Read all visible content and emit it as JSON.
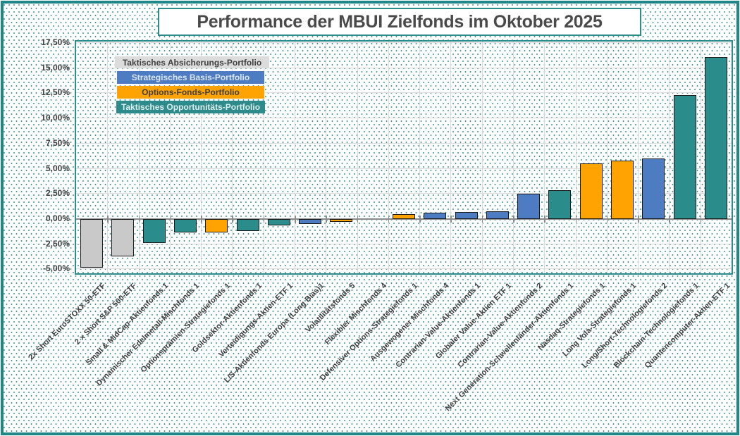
{
  "title": "Performance der MBUI Zielfonds im Oktober 2025",
  "legend": {
    "position": "top-left",
    "items": [
      {
        "label": "Taktisches Absicherungs-Portfolio",
        "key": "absicherung",
        "color": "#DCDCDC",
        "text_color": "#3F3F3F"
      },
      {
        "label": "Strategisches Basis-Portfolio",
        "key": "basis",
        "color": "#4E7CC3",
        "text_color": "#DCE6F2"
      },
      {
        "label": "Options-Fonds-Portfolio",
        "key": "options",
        "color": "#FFA303",
        "text_color": "#3F3F3F"
      },
      {
        "label": "Taktisches Opportunitäts-Portfolio",
        "key": "opportunitaet",
        "color": "#2E8B8B",
        "text_color": "#DEEDED"
      }
    ]
  },
  "palette": {
    "absicherung": "#C9C9C9",
    "basis": "#4E7CC3",
    "options": "#FFA303",
    "opportunitaet": "#2B8C8C"
  },
  "chart_data": {
    "type": "bar",
    "title": "Performance der MBUI Zielfonds im Oktober 2025",
    "unit": "percent",
    "grid": true,
    "legend_position": "top-left",
    "ylim": [
      -6,
      17.6
    ],
    "ytick_step": 2.5,
    "yticks": [
      {
        "value": 17.5,
        "label": "17,50%"
      },
      {
        "value": 15.0,
        "label": "15,00%"
      },
      {
        "value": 12.5,
        "label": "12,50%"
      },
      {
        "value": 10.0,
        "label": "10,00%"
      },
      {
        "value": 7.5,
        "label": "7,50%"
      },
      {
        "value": 5.0,
        "label": "5,00%"
      },
      {
        "value": 2.5,
        "label": "2,50%"
      },
      {
        "value": 0.0,
        "label": "0,00%"
      },
      {
        "value": -2.5,
        "label": "-2,50%"
      },
      {
        "value": -5.0,
        "label": "-5,00%"
      }
    ],
    "bars": [
      {
        "label": "2x Short EuroSTOXX 50-ETF",
        "value": -4.8,
        "portfolio": "absicherung"
      },
      {
        "label": "2 x Short S&P 500-ETF",
        "value": -3.7,
        "portfolio": "absicherung"
      },
      {
        "label": "Small & MidCap-Aktienfonds 1",
        "value": -2.4,
        "portfolio": "opportunitaet"
      },
      {
        "label": "Dynamischer Edelmetall-Mischfonds 1",
        "value": -1.3,
        "portfolio": "opportunitaet"
      },
      {
        "label": "Optionsprämien-Strategiefonds 1",
        "value": -1.3,
        "portfolio": "options"
      },
      {
        "label": "Goldsektor-Aktienfonds 1",
        "value": -1.2,
        "portfolio": "opportunitaet"
      },
      {
        "label": "Verteidigungs-Aktien-ETF 1",
        "value": -0.6,
        "portfolio": "opportunitaet"
      },
      {
        "label": "L/S-Aktienfonds Europa (Long Bias)1",
        "value": -0.5,
        "portfolio": "basis"
      },
      {
        "label": "Volatilitätsfonds 5",
        "value": -0.3,
        "portfolio": "options"
      },
      {
        "label": "Flexibler Mischfonds 4",
        "value": 0.0,
        "portfolio": "basis"
      },
      {
        "label": "Defensiver Options-Strategiefonds 1",
        "value": 0.5,
        "portfolio": "options"
      },
      {
        "label": "Ausgewogener Mischfonds 4",
        "value": 0.6,
        "portfolio": "basis"
      },
      {
        "label": "Contrarian-Value-Aktienfonds 1",
        "value": 0.7,
        "portfolio": "basis"
      },
      {
        "label": "Globaler Value-Aktien ETF 1",
        "value": 0.8,
        "portfolio": "basis"
      },
      {
        "label": "Contrarian-Value-Aktienfonds 2",
        "value": 2.5,
        "portfolio": "basis"
      },
      {
        "label": "Next Generation-Schwellenländer-Aktienfonds 1",
        "value": 2.9,
        "portfolio": "opportunitaet"
      },
      {
        "label": "Nasdaq-Strategiefonds 1",
        "value": 5.5,
        "portfolio": "options"
      },
      {
        "label": "Long Vola-Strategiefonds 1",
        "value": 5.8,
        "portfolio": "options"
      },
      {
        "label": "Long/Short-Technologiefonds 2",
        "value": 6.0,
        "portfolio": "basis"
      },
      {
        "label": "Blockchain-Technologiefonds 1",
        "value": 12.3,
        "portfolio": "opportunitaet"
      },
      {
        "label": "Quantencomputer-Aktien-ETF 1",
        "value": 16.1,
        "portfolio": "opportunitaet"
      }
    ]
  }
}
